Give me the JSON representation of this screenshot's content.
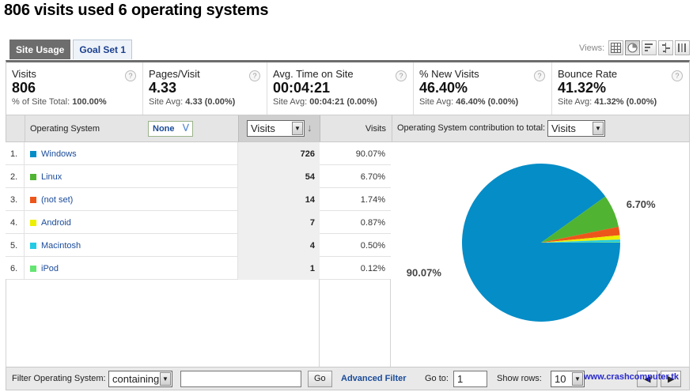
{
  "page_title": "806 visits used 6 operating systems",
  "tabs": [
    "Site Usage",
    "Goal Set 1"
  ],
  "views_label": "Views:",
  "view_icons": [
    "table-icon",
    "pie-icon",
    "performance-icon",
    "comparison-icon",
    "pivot-icon"
  ],
  "metrics": [
    {
      "label": "Visits",
      "value": "806",
      "sub_prefix": "% of Site Total: ",
      "sub_value": "100.00%"
    },
    {
      "label": "Pages/Visit",
      "value": "4.33",
      "sub_prefix": "Site Avg: ",
      "sub_value": "4.33 (0.00%)"
    },
    {
      "label": "Avg. Time on Site",
      "value": "00:04:21",
      "sub_prefix": "Site Avg: ",
      "sub_value": "00:04:21 (0.00%)"
    },
    {
      "label": "% New Visits",
      "value": "46.40%",
      "sub_prefix": "Site Avg: ",
      "sub_value": "46.40% (0.00%)"
    },
    {
      "label": "Bounce Rate",
      "value": "41.32%",
      "sub_prefix": "Site Avg: ",
      "sub_value": "41.32% (0.00%)"
    }
  ],
  "table": {
    "dimension_header": "Operating System",
    "secondary_dimension": "None",
    "metric_select": "Visits",
    "visits_header": "Visits",
    "contribution_label": "Operating System contribution to total:",
    "contribution_select": "Visits",
    "rows": [
      {
        "num": "1.",
        "name": "Windows",
        "visits": "726",
        "pct": "90.07%",
        "color": "#058dc7"
      },
      {
        "num": "2.",
        "name": "Linux",
        "visits": "54",
        "pct": "6.70%",
        "color": "#50b432"
      },
      {
        "num": "3.",
        "name": "(not set)",
        "visits": "14",
        "pct": "1.74%",
        "color": "#ed561b"
      },
      {
        "num": "4.",
        "name": "Android",
        "visits": "7",
        "pct": "0.87%",
        "color": "#edef00"
      },
      {
        "num": "5.",
        "name": "Macintosh",
        "visits": "4",
        "pct": "0.50%",
        "color": "#24cbe5"
      },
      {
        "num": "6.",
        "name": "iPod",
        "visits": "1",
        "pct": "0.12%",
        "color": "#64e572"
      }
    ]
  },
  "chart_data": {
    "type": "pie",
    "categories": [
      "Windows",
      "Linux",
      "(not set)",
      "Android",
      "Macintosh",
      "iPod"
    ],
    "values": [
      726,
      54,
      14,
      7,
      4,
      1
    ],
    "colors": [
      "#058dc7",
      "#50b432",
      "#ed561b",
      "#edef00",
      "#24cbe5",
      "#64e572"
    ],
    "labels": [
      "90.07%",
      "6.70%"
    ]
  },
  "footer": {
    "filter_label": "Filter Operating System:",
    "filter_mode": "containing",
    "filter_value": "",
    "go_label": "Go",
    "advanced_filter": "Advanced Filter",
    "goto_label": "Go to:",
    "goto_value": "1",
    "show_rows_label": "Show rows:",
    "show_rows_value": "10"
  },
  "watermark": "www.crashcomputer.tk"
}
